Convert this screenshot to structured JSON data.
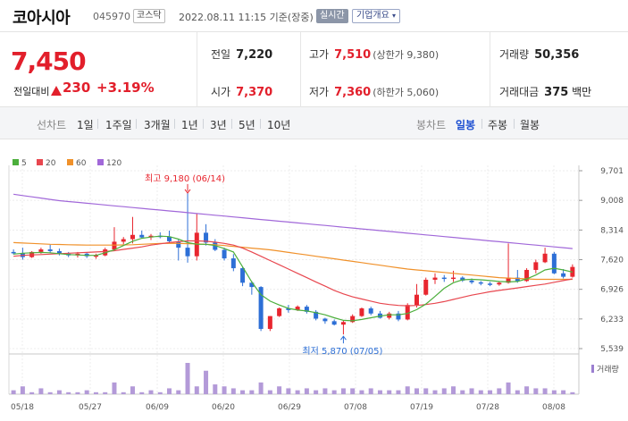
{
  "stock": {
    "name": "코아시아",
    "code": "045970",
    "market": "코스닥",
    "datetime": "2022.08.11 11:15 기준(장중)",
    "realtime_label": "실시간",
    "company_info_label": "기업개요",
    "price": "7,450",
    "change_label": "전일대비",
    "change": "230",
    "change_pct": "+3.19%"
  },
  "quote": {
    "prev_close": {
      "label": "전일",
      "value": "7,220"
    },
    "high": {
      "label": "고가",
      "value": "7,510",
      "sub": "(상한가 9,380)"
    },
    "volume": {
      "label": "거래량",
      "value": "50,356"
    },
    "open": {
      "label": "시가",
      "value": "7,370"
    },
    "low": {
      "label": "저가",
      "value": "7,360",
      "sub": "(하한가 5,060)"
    },
    "amount": {
      "label": "거래대금",
      "value": "375",
      "unit": "백만"
    }
  },
  "period_tabs": {
    "group_label": "선차트",
    "items": [
      "1일",
      "1주일",
      "3개월",
      "1년",
      "3년",
      "5년",
      "10년"
    ],
    "candle_label": "봉차트",
    "candle_items": [
      "일봉",
      "주봉",
      "월봉"
    ],
    "active": "일봉"
  },
  "colors": {
    "up": "#e8262f",
    "down": "#2d6fd6",
    "ma5": "#4caf3c",
    "ma20": "#e8474f",
    "ma60": "#f0912a",
    "ma120": "#a168d9",
    "accent": "#1d4fd1"
  },
  "chart_data": {
    "type": "candlestick",
    "legend": [
      "5",
      "20",
      "60",
      "120"
    ],
    "y_ticks": [
      "9,701",
      "9,008",
      "8,314",
      "7,620",
      "6,926",
      "6,233",
      "5,539"
    ],
    "ylim": [
      5539,
      9701
    ],
    "x_ticks": [
      "05/18",
      "05/27",
      "06/09",
      "06/20",
      "06/29",
      "07/08",
      "07/19",
      "07/28",
      "08/08"
    ],
    "high_annotation": "최고 9,180 (06/14)",
    "low_annotation": "최저 5,870 (07/05)",
    "volume_label": "거래량",
    "candles": [
      [
        7800,
        7860,
        7740,
        7780
      ],
      [
        7770,
        7900,
        7620,
        7680
      ],
      [
        7680,
        7820,
        7660,
        7800
      ],
      [
        7800,
        7900,
        7760,
        7860
      ],
      [
        7860,
        7970,
        7780,
        7820
      ],
      [
        7820,
        7880,
        7720,
        7760
      ],
      [
        7760,
        7800,
        7680,
        7720
      ],
      [
        7720,
        7800,
        7670,
        7760
      ],
      [
        7760,
        7790,
        7660,
        7700
      ],
      [
        7700,
        7760,
        7640,
        7720
      ],
      [
        7720,
        7900,
        7700,
        7860
      ],
      [
        7860,
        8380,
        7820,
        8040
      ],
      [
        8040,
        8150,
        7980,
        8100
      ],
      [
        8100,
        8620,
        8000,
        8200
      ],
      [
        8200,
        8300,
        8120,
        8140
      ],
      [
        8140,
        8220,
        8080,
        8180
      ],
      [
        8180,
        8260,
        8120,
        8160
      ],
      [
        8160,
        8300,
        8020,
        8050
      ],
      [
        8050,
        8100,
        7600,
        7900
      ],
      [
        7900,
        9180,
        7550,
        7700
      ],
      [
        7700,
        8700,
        7600,
        8250
      ],
      [
        8250,
        8450,
        7950,
        8020
      ],
      [
        8020,
        8100,
        7820,
        7850
      ],
      [
        7850,
        7900,
        7600,
        7650
      ],
      [
        7650,
        7750,
        7350,
        7420
      ],
      [
        7420,
        7450,
        7000,
        7080
      ],
      [
        7080,
        7120,
        6800,
        6980
      ],
      [
        6980,
        7000,
        5950,
        6000
      ],
      [
        6000,
        6300,
        5950,
        6300
      ],
      [
        6300,
        6500,
        6280,
        6480
      ],
      [
        6480,
        6560,
        6380,
        6440
      ],
      [
        6440,
        6550,
        6420,
        6520
      ],
      [
        6520,
        6560,
        6360,
        6400
      ],
      [
        6400,
        6440,
        6200,
        6240
      ],
      [
        6240,
        6260,
        6120,
        6180
      ],
      [
        6180,
        6220,
        6080,
        6100
      ],
      [
        6100,
        6200,
        5870,
        6160
      ],
      [
        6160,
        6340,
        6140,
        6300
      ],
      [
        6300,
        6500,
        6280,
        6480
      ],
      [
        6480,
        6520,
        6320,
        6360
      ],
      [
        6360,
        6420,
        6240,
        6260
      ],
      [
        6260,
        6400,
        6220,
        6360
      ],
      [
        6360,
        6420,
        6180,
        6220
      ],
      [
        6220,
        6600,
        6200,
        6560
      ],
      [
        6560,
        7050,
        6500,
        6800
      ],
      [
        6800,
        7200,
        6780,
        7150
      ],
      [
        7150,
        7300,
        7050,
        7200
      ],
      [
        7200,
        7260,
        7100,
        7180
      ],
      [
        7180,
        7360,
        7100,
        7200
      ],
      [
        7200,
        7230,
        7100,
        7130
      ],
      [
        7130,
        7180,
        7050,
        7090
      ],
      [
        7090,
        7120,
        7020,
        7060
      ],
      [
        7060,
        7100,
        7000,
        7040
      ],
      [
        7040,
        7100,
        7010,
        7080
      ],
      [
        7080,
        8000,
        7060,
        7200
      ],
      [
        7200,
        7380,
        7080,
        7120
      ],
      [
        7120,
        7420,
        7100,
        7380
      ],
      [
        7380,
        7620,
        7300,
        7560
      ],
      [
        7560,
        7900,
        7540,
        7760
      ],
      [
        7760,
        7800,
        7280,
        7300
      ],
      [
        7300,
        7400,
        7180,
        7220
      ],
      [
        7220,
        7510,
        7200,
        7450
      ]
    ],
    "volumes": [
      2,
      4,
      1,
      3,
      1,
      2,
      1,
      1,
      2,
      1,
      1,
      6,
      1,
      4,
      1,
      2,
      1,
      3,
      2,
      16,
      4,
      12,
      5,
      4,
      3,
      2,
      2,
      6,
      2,
      4,
      3,
      2,
      3,
      2,
      3,
      2,
      3,
      3,
      2,
      3,
      2,
      2,
      2,
      4,
      3,
      3,
      2,
      3,
      4,
      2,
      3,
      2,
      2,
      3,
      6,
      2,
      4,
      3,
      3,
      2,
      2,
      1
    ],
    "ma5": [
      7750,
      7770,
      7780,
      7790,
      7780,
      7760,
      7740,
      7730,
      7720,
      7720,
      7780,
      7850,
      7950,
      8050,
      8120,
      8150,
      8170,
      8160,
      8100,
      8020,
      7980,
      7980,
      7950,
      7880,
      7800,
      7450,
      7100,
      6800,
      6650,
      6560,
      6480,
      6440,
      6420,
      6380,
      6330,
      6260,
      6200,
      6190,
      6220,
      6260,
      6300,
      6330,
      6330,
      6360,
      6450,
      6580,
      6760,
      6950,
      7080,
      7150,
      7160,
      7150,
      7130,
      7110,
      7100,
      7110,
      7170,
      7260,
      7380,
      7420,
      7380,
      7330
    ],
    "ma20": [
      7700,
      7720,
      7730,
      7740,
      7750,
      7760,
      7770,
      7780,
      7790,
      7800,
      7810,
      7830,
      7860,
      7890,
      7920,
      7960,
      7990,
      8020,
      8040,
      8060,
      8060,
      8050,
      8030,
      8000,
      7960,
      7890,
      7800,
      7700,
      7600,
      7500,
      7400,
      7300,
      7200,
      7100,
      7000,
      6900,
      6820,
      6750,
      6700,
      6650,
      6600,
      6570,
      6550,
      6540,
      6550,
      6570,
      6600,
      6640,
      6690,
      6740,
      6790,
      6830,
      6870,
      6900,
      6930,
      6960,
      6990,
      7020,
      7050,
      7090,
      7130,
      7170
    ],
    "ma60": [
      8020,
      8010,
      8000,
      7990,
      7980,
      7975,
      7970,
      7965,
      7960,
      7960,
      7960,
      7960,
      7965,
      7970,
      7980,
      7990,
      8000,
      8005,
      8000,
      7995,
      7990,
      7980,
      7970,
      7950,
      7930,
      7910,
      7890,
      7870,
      7850,
      7820,
      7790,
      7760,
      7730,
      7700,
      7670,
      7640,
      7610,
      7580,
      7550,
      7520,
      7490,
      7460,
      7430,
      7400,
      7380,
      7360,
      7340,
      7320,
      7300,
      7280,
      7260,
      7240,
      7220,
      7200,
      7190,
      7180,
      7170,
      7160,
      7160,
      7160,
      7160,
      7160
    ],
    "ma120": [
      9150,
      9120,
      9090,
      9060,
      9030,
      9000,
      8980,
      8960,
      8940,
      8920,
      8900,
      8880,
      8860,
      8840,
      8820,
      8800,
      8780,
      8760,
      8740,
      8720,
      8700,
      8680,
      8660,
      8640,
      8620,
      8600,
      8580,
      8560,
      8540,
      8520,
      8500,
      8480,
      8460,
      8440,
      8420,
      8400,
      8380,
      8360,
      8340,
      8320,
      8300,
      8280,
      8260,
      8240,
      8220,
      8200,
      8180,
      8160,
      8140,
      8120,
      8100,
      8080,
      8060,
      8040,
      8020,
      8000,
      7980,
      7960,
      7940,
      7920,
      7900,
      7880
    ]
  }
}
